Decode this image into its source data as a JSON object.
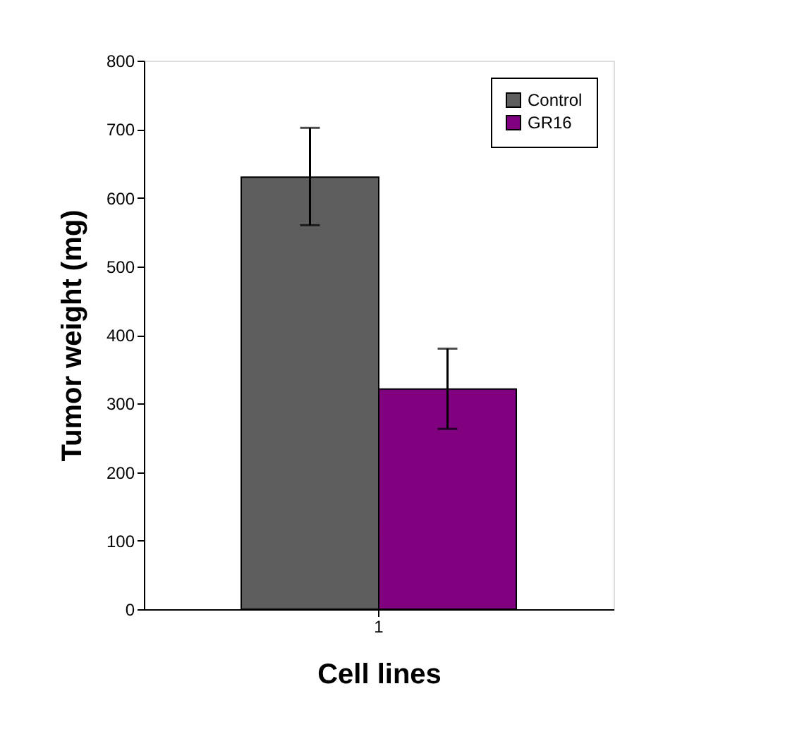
{
  "chart_data": {
    "type": "bar",
    "xlabel": "Cell lines",
    "ylabel": "Tumor weight (mg)",
    "categories": [
      "1"
    ],
    "series": [
      {
        "name": "Control",
        "color": "#5e5e5e",
        "values": [
          630
        ],
        "errors": [
          [
            560,
            702
          ]
        ]
      },
      {
        "name": "GR16",
        "color": "#800080",
        "values": [
          321
        ],
        "errors": [
          [
            263,
            380
          ]
        ]
      }
    ],
    "ylim": [
      0,
      800
    ],
    "yticks": [
      0,
      100,
      200,
      300,
      400,
      500,
      600,
      700,
      800
    ],
    "grid": false,
    "legend": "top right"
  }
}
